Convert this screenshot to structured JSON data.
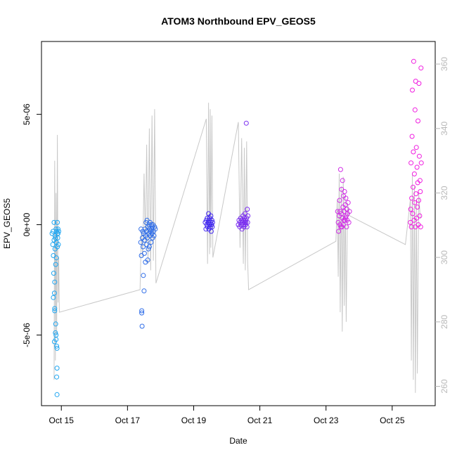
{
  "chart_data": {
    "type": "scatter",
    "title": "ATOM3 Northbound EPV_GEOS5",
    "xlabel": "Date",
    "ylabel": "EPV_GEOS5",
    "xlim": [
      14.4,
      26.3
    ],
    "ylim": [
      -8.2e-06,
      8.3e-06
    ],
    "y2lim": [
      254,
      367
    ],
    "x_ticks": [
      15,
      17,
      19,
      21,
      23,
      25
    ],
    "x_tick_labels": [
      "Oct 15",
      "Oct 17",
      "Oct 19",
      "Oct 21",
      "Oct 23",
      "Oct 25"
    ],
    "y_ticks": [
      5e-06,
      0,
      -5e-06
    ],
    "y_tick_labels": [
      "5e-06",
      "0e+00",
      "-5e-06"
    ],
    "y2_ticks": [
      260,
      280,
      300,
      320,
      340,
      360
    ],
    "y2_tick_labels": [
      "260",
      "280",
      "300",
      "320",
      "340",
      "360"
    ],
    "grid": false,
    "line_color": "#c8c8c8",
    "color_scale": [
      "#1fa6f2",
      "#2f6de8",
      "#4228f0",
      "#7b2ff0",
      "#d12ee6",
      "#f01ee0"
    ],
    "series": [
      {
        "segment": 1,
        "points": [
          [
            14.72,
            -4e-07
          ],
          [
            14.74,
            -9e-07
          ],
          [
            14.75,
            -3e-07
          ],
          [
            14.76,
            -1.4e-06
          ],
          [
            14.77,
            -2.2e-06
          ],
          [
            14.78,
            1e-07
          ],
          [
            14.78,
            -7e-07
          ],
          [
            14.79,
            -3.1e-06
          ],
          [
            14.79,
            -5.3e-06
          ],
          [
            14.8,
            -3.9e-06
          ],
          [
            14.8,
            -2.6e-06
          ],
          [
            14.81,
            -5e-07
          ],
          [
            14.81,
            -1.1e-06
          ],
          [
            14.82,
            -4.9e-06
          ],
          [
            14.82,
            -6e-07
          ],
          [
            14.83,
            -1.8e-06
          ],
          [
            14.83,
            -4.5e-06
          ],
          [
            14.84,
            -2e-07
          ],
          [
            14.84,
            -5e-06
          ],
          [
            14.85,
            -8e-07
          ],
          [
            14.85,
            -1.5e-06
          ],
          [
            14.86,
            -5.5e-06
          ],
          [
            14.86,
            -3e-07
          ],
          [
            14.87,
            -5.6e-06
          ],
          [
            14.87,
            -6.5e-06
          ],
          [
            14.87,
            -7.7e-06
          ],
          [
            14.88,
            1e-07
          ],
          [
            14.88,
            -1e-06
          ],
          [
            14.89,
            -4e-07
          ],
          [
            14.89,
            -6e-07
          ],
          [
            14.9,
            -2e-07
          ],
          [
            14.91,
            -9e-07
          ],
          [
            14.92,
            -3e-07
          ],
          [
            14.76,
            -3.3e-06
          ],
          [
            14.8,
            -3.8e-06
          ],
          [
            14.84,
            -5.2e-06
          ],
          [
            14.86,
            -6.9e-06
          ],
          [
            14.9,
            -4e-07
          ]
        ],
        "line": [
          [
            14.78,
            262
          ],
          [
            14.8,
            330
          ],
          [
            14.82,
            268
          ],
          [
            14.84,
            320
          ],
          [
            14.86,
            276
          ],
          [
            14.88,
            338
          ],
          [
            14.9,
            286
          ],
          [
            14.92,
            300
          ],
          [
            14.94,
            283
          ]
        ]
      },
      {
        "segment": 2,
        "points": [
          [
            17.4,
            -8e-07
          ],
          [
            17.41,
            -2e-07
          ],
          [
            17.42,
            -1.4e-06
          ],
          [
            17.43,
            -4e-06
          ],
          [
            17.44,
            -4.6e-06
          ],
          [
            17.45,
            -6e-07
          ],
          [
            17.46,
            -3e-07
          ],
          [
            17.47,
            -1e-06
          ],
          [
            17.48,
            -2.3e-06
          ],
          [
            17.49,
            -4e-07
          ],
          [
            17.5,
            -3e-06
          ],
          [
            17.51,
            -1.3e-06
          ],
          [
            17.52,
            -7e-07
          ],
          [
            17.53,
            -2e-07
          ],
          [
            17.54,
            -1.7e-06
          ],
          [
            17.55,
            -5e-07
          ],
          [
            17.56,
            1e-07
          ],
          [
            17.57,
            -9e-07
          ],
          [
            17.58,
            -3e-07
          ],
          [
            17.59,
            2e-07
          ],
          [
            17.6,
            -6e-07
          ],
          [
            17.61,
            -1.6e-06
          ],
          [
            17.62,
            -1e-07
          ],
          [
            17.63,
            -1.1e-06
          ],
          [
            17.64,
            -4e-07
          ],
          [
            17.65,
            0.0
          ],
          [
            17.66,
            -1e-06
          ],
          [
            17.67,
            -2e-07
          ],
          [
            17.68,
            1e-07
          ],
          [
            17.69,
            -5e-07
          ],
          [
            17.7,
            -3e-07
          ],
          [
            17.71,
            -8e-07
          ],
          [
            17.72,
            0.0
          ],
          [
            17.73,
            -2e-07
          ],
          [
            17.74,
            -4e-07
          ],
          [
            17.75,
            -1e-07
          ],
          [
            17.76,
            -6e-07
          ],
          [
            17.77,
            0.0
          ],
          [
            17.78,
            -3e-07
          ],
          [
            17.8,
            -5e-07
          ],
          [
            17.82,
            -1e-07
          ],
          [
            17.84,
            -2e-07
          ],
          [
            17.43,
            -3.9e-06
          ]
        ],
        "line": [
          [
            14.94,
            283
          ],
          [
            17.38,
            290
          ],
          [
            17.42,
            308
          ],
          [
            17.46,
            300
          ],
          [
            17.5,
            326
          ],
          [
            17.54,
            303
          ],
          [
            17.58,
            335
          ],
          [
            17.62,
            298
          ],
          [
            17.66,
            340
          ],
          [
            17.7,
            296
          ],
          [
            17.74,
            344
          ],
          [
            17.78,
            299
          ],
          [
            17.82,
            346
          ],
          [
            17.86,
            292
          ]
        ]
      },
      {
        "segment": 3,
        "points": [
          [
            19.35,
            1e-07
          ],
          [
            19.37,
            -2e-07
          ],
          [
            19.38,
            2e-07
          ],
          [
            19.4,
            0.0
          ],
          [
            19.41,
            3e-07
          ],
          [
            19.42,
            -1e-07
          ],
          [
            19.44,
            1e-07
          ],
          [
            19.45,
            5e-07
          ],
          [
            19.46,
            -2e-07
          ],
          [
            19.47,
            2e-07
          ],
          [
            19.48,
            0.0
          ],
          [
            19.49,
            3e-07
          ],
          [
            19.5,
            -1e-07
          ],
          [
            19.51,
            1e-07
          ],
          [
            19.52,
            4e-07
          ],
          [
            19.53,
            -3e-07
          ],
          [
            19.54,
            0.0
          ],
          [
            19.55,
            2e-07
          ],
          [
            19.56,
            -1e-07
          ],
          [
            19.57,
            1e-07
          ]
        ],
        "line": [
          [
            17.86,
            292
          ],
          [
            19.38,
            343
          ],
          [
            19.42,
            298
          ],
          [
            19.45,
            348
          ],
          [
            19.48,
            301
          ],
          [
            19.5,
            346
          ],
          [
            19.52,
            303
          ],
          [
            19.55,
            344
          ],
          [
            19.58,
            300
          ]
        ]
      },
      {
        "segment": 4,
        "points": [
          [
            20.35,
            0.0
          ],
          [
            20.37,
            2e-07
          ],
          [
            20.39,
            -1e-07
          ],
          [
            20.4,
            1e-07
          ],
          [
            20.42,
            3e-07
          ],
          [
            20.43,
            0.0
          ],
          [
            20.45,
            2e-07
          ],
          [
            20.46,
            -2e-07
          ],
          [
            20.48,
            1e-07
          ],
          [
            20.49,
            4e-07
          ],
          [
            20.5,
            0.0
          ],
          [
            20.51,
            2e-07
          ],
          [
            20.52,
            -1e-07
          ],
          [
            20.53,
            3e-07
          ],
          [
            20.54,
            1e-07
          ],
          [
            20.55,
            5e-07
          ],
          [
            20.56,
            0.0
          ],
          [
            20.57,
            2e-07
          ],
          [
            20.58,
            1e-07
          ],
          [
            20.59,
            4.6e-06
          ],
          [
            20.6,
            3e-07
          ],
          [
            20.61,
            -1e-07
          ],
          [
            20.62,
            7e-07
          ],
          [
            20.63,
            1e-07
          ],
          [
            20.64,
            4e-07
          ]
        ],
        "line": [
          [
            19.58,
            300
          ],
          [
            20.35,
            342
          ],
          [
            20.4,
            303
          ],
          [
            20.45,
            337
          ],
          [
            20.5,
            298
          ],
          [
            20.53,
            334
          ],
          [
            20.56,
            296
          ],
          [
            20.6,
            336
          ],
          [
            20.63,
            299
          ],
          [
            20.66,
            290
          ]
        ]
      },
      {
        "segment": 5,
        "points": [
          [
            23.35,
            6e-07
          ],
          [
            23.37,
            1e-07
          ],
          [
            23.38,
            -3e-07
          ],
          [
            23.4,
            4e-07
          ],
          [
            23.41,
            1.1e-06
          ],
          [
            23.42,
            0.0
          ],
          [
            23.43,
            6e-07
          ],
          [
            23.44,
            2.5e-06
          ],
          [
            23.45,
            -1e-07
          ],
          [
            23.46,
            5e-07
          ],
          [
            23.47,
            1.6e-06
          ],
          [
            23.48,
            -1e-07
          ],
          [
            23.49,
            3e-07
          ],
          [
            23.5,
            2e-06
          ],
          [
            23.51,
            8e-07
          ],
          [
            23.52,
            0.0
          ],
          [
            23.53,
            1.3e-06
          ],
          [
            23.54,
            2e-07
          ],
          [
            23.55,
            6e-07
          ],
          [
            23.56,
            1.5e-06
          ],
          [
            23.57,
            2e-07
          ],
          [
            23.58,
            9e-07
          ],
          [
            23.59,
            3e-07
          ],
          [
            23.6,
            1.2e-06
          ],
          [
            23.61,
            4e-07
          ],
          [
            23.62,
            -1e-07
          ],
          [
            23.63,
            7e-07
          ],
          [
            23.64,
            2e-07
          ],
          [
            23.65,
            5e-07
          ],
          [
            23.67,
            1e-06
          ],
          [
            23.69,
            1e-07
          ],
          [
            23.71,
            6e-07
          ]
        ],
        "line": [
          [
            20.66,
            290
          ],
          [
            23.3,
            305
          ],
          [
            23.34,
            318
          ],
          [
            23.37,
            294
          ],
          [
            23.4,
            326
          ],
          [
            23.43,
            283
          ],
          [
            23.46,
            322
          ],
          [
            23.49,
            277
          ],
          [
            23.52,
            325
          ],
          [
            23.55,
            285
          ],
          [
            23.58,
            319
          ],
          [
            23.61,
            280
          ],
          [
            23.65,
            317
          ],
          [
            23.7,
            313
          ],
          [
            25.4,
            304
          ]
        ]
      },
      {
        "segment": 6,
        "points": [
          [
            25.55,
            1e-07
          ],
          [
            25.56,
            7e-07
          ],
          [
            25.57,
            2.8e-06
          ],
          [
            25.58,
            -1e-07
          ],
          [
            25.59,
            1.2e-06
          ],
          [
            25.6,
            4e-06
          ],
          [
            25.61,
            6.1e-06
          ],
          [
            25.62,
            5e-07
          ],
          [
            25.63,
            1.7e-06
          ],
          [
            25.64,
            3.3e-06
          ],
          [
            25.65,
            7.4e-06
          ],
          [
            25.66,
            2e-07
          ],
          [
            25.67,
            2.3e-06
          ],
          [
            25.68,
            1e-06
          ],
          [
            25.69,
            5.2e-06
          ],
          [
            25.7,
            -1e-07
          ],
          [
            25.71,
            6.5e-06
          ],
          [
            25.72,
            1.4e-06
          ],
          [
            25.73,
            3.5e-06
          ],
          [
            25.74,
            3e-07
          ],
          [
            25.75,
            2.6e-06
          ],
          [
            25.76,
            8e-07
          ],
          [
            25.77,
            1.9e-06
          ],
          [
            25.78,
            4.7e-06
          ],
          [
            25.79,
            0.0
          ],
          [
            25.8,
            1.1e-06
          ],
          [
            25.81,
            6.4e-06
          ],
          [
            25.82,
            3.1e-06
          ],
          [
            25.83,
            4e-07
          ],
          [
            25.84,
            2e-06
          ],
          [
            25.85,
            1.5e-06
          ],
          [
            25.86,
            -1e-07
          ],
          [
            25.87,
            7.1e-06
          ],
          [
            25.88,
            2.8e-06
          ]
        ],
        "line": [
          [
            25.4,
            304
          ],
          [
            25.55,
            318
          ],
          [
            25.58,
            268
          ],
          [
            25.61,
            326
          ],
          [
            25.64,
            262
          ],
          [
            25.67,
            322
          ],
          [
            25.7,
            258
          ],
          [
            25.73,
            318
          ],
          [
            25.76,
            264
          ],
          [
            25.8,
            320
          ],
          [
            25.85,
            312
          ]
        ]
      }
    ]
  }
}
